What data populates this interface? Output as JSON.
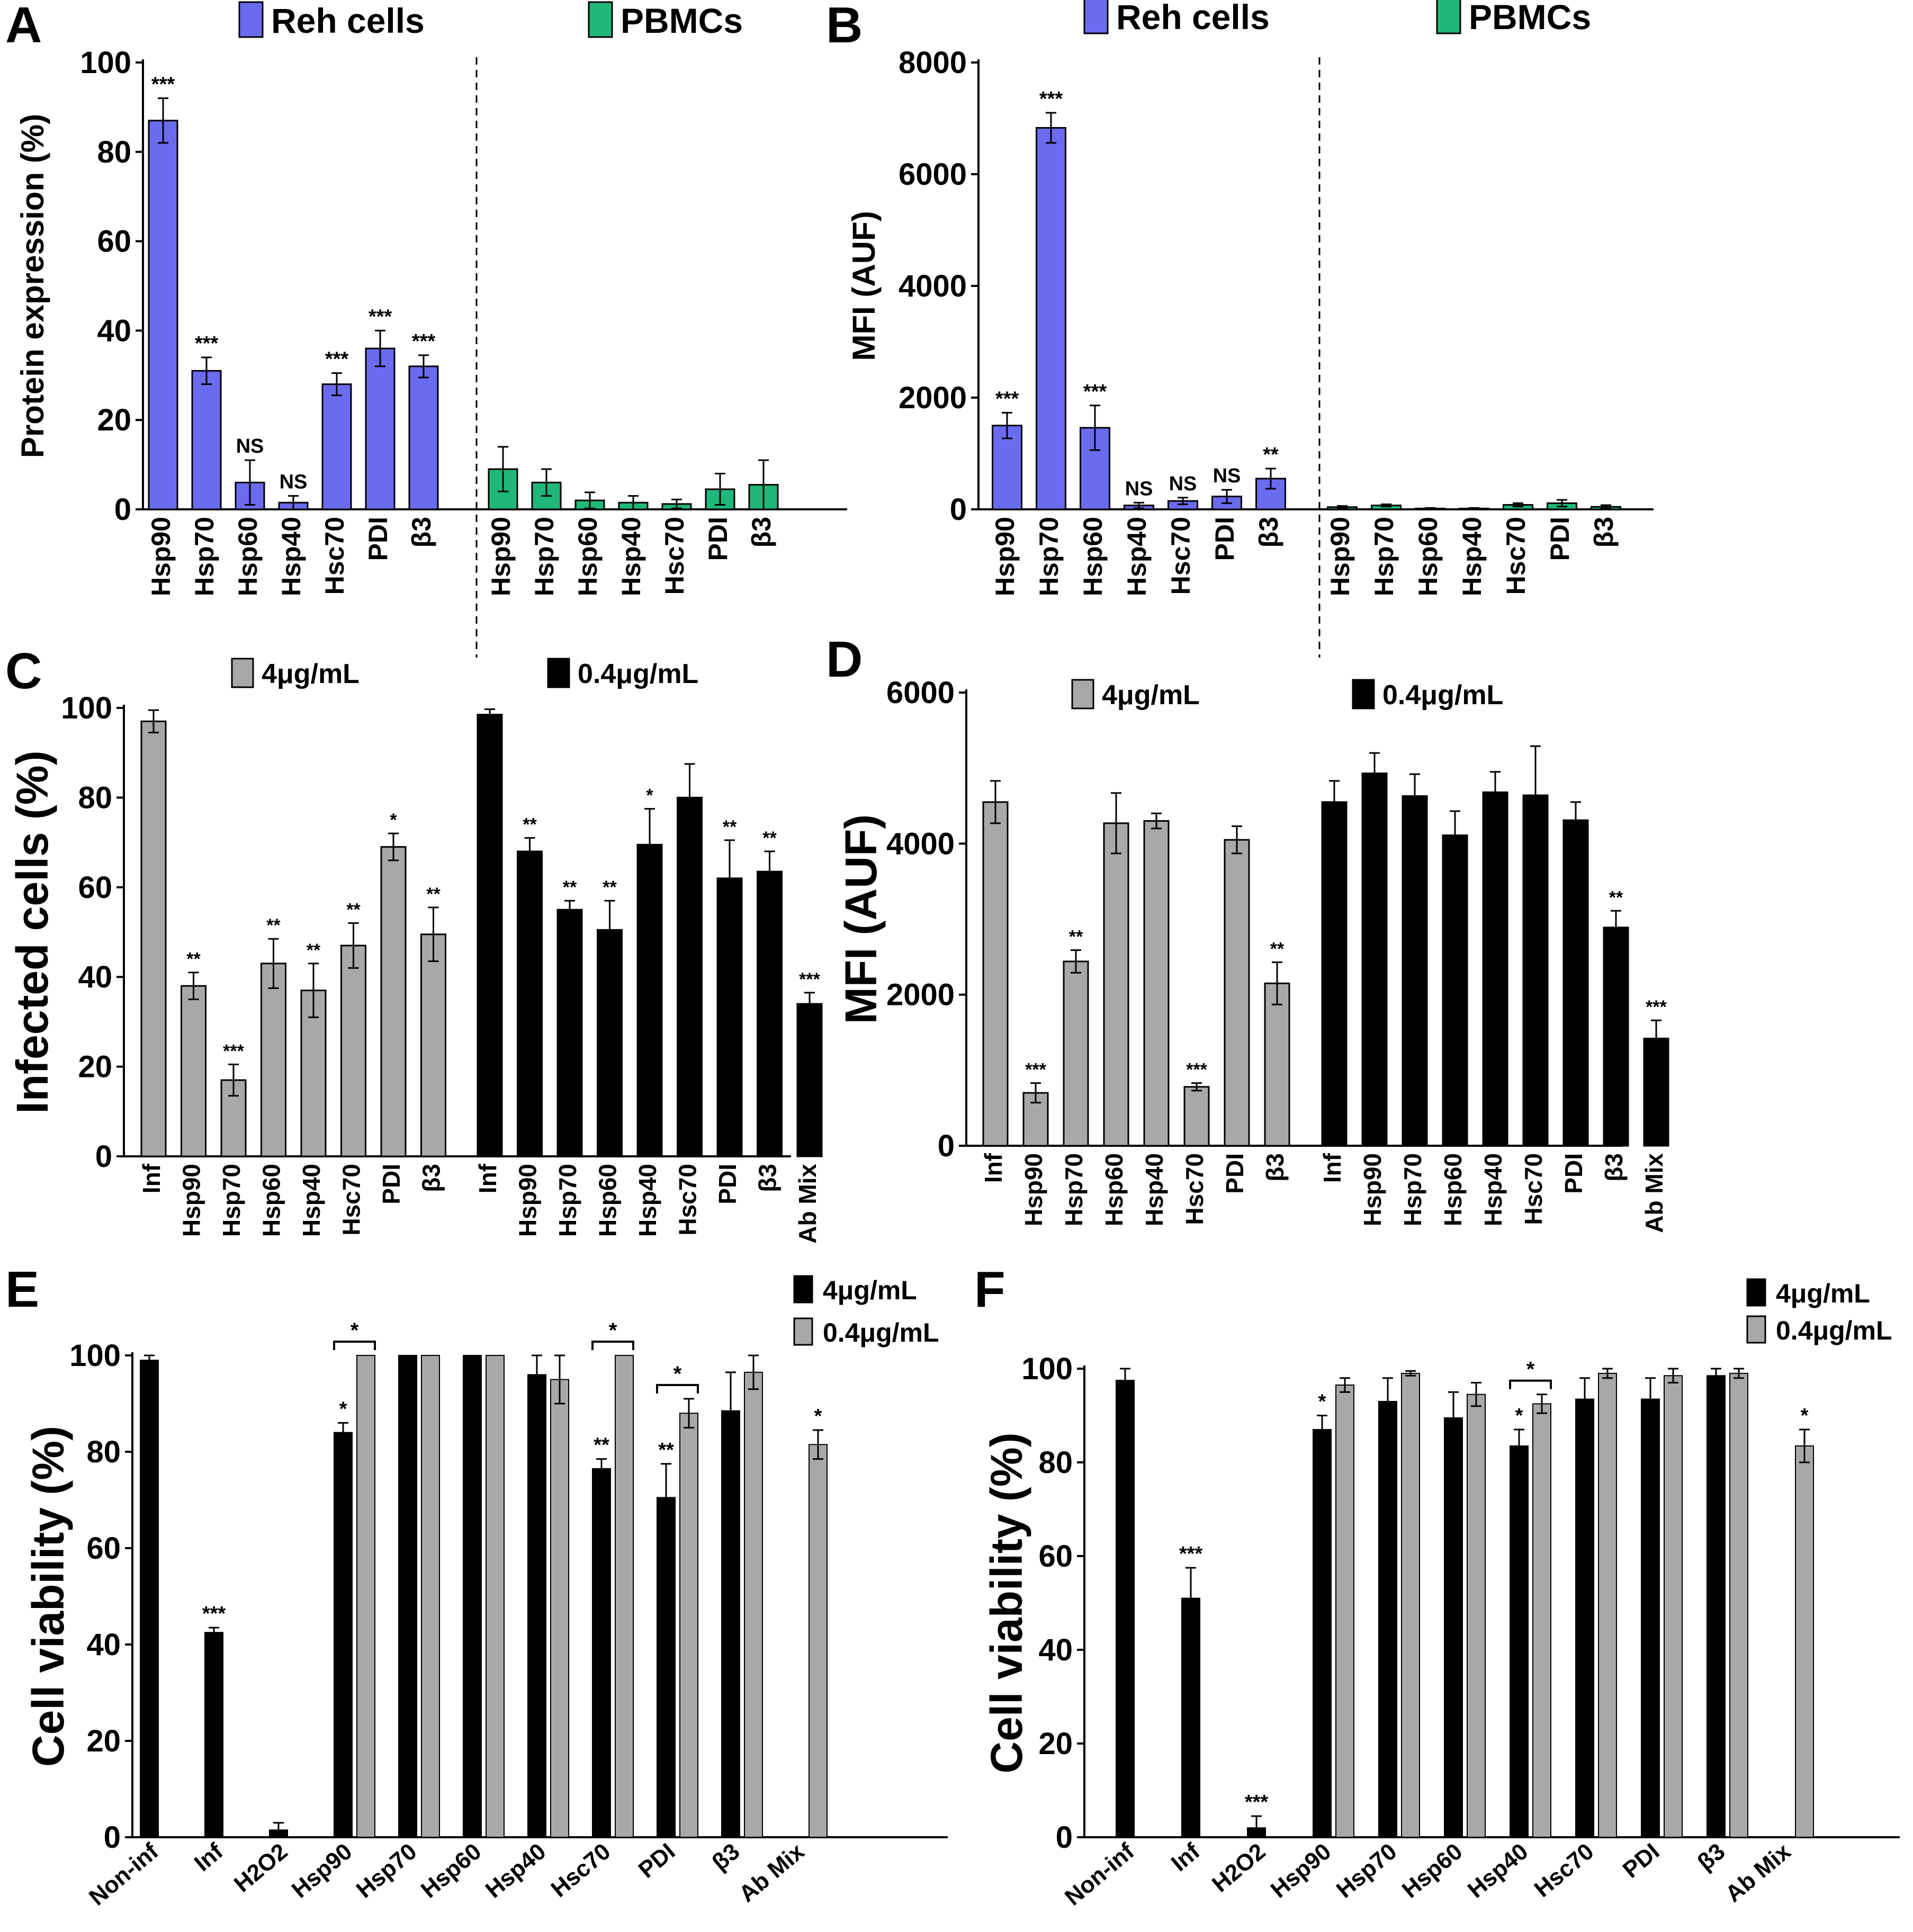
{
  "colors": {
    "reh": "#6b6bf0",
    "pbmc": "#1fb87a",
    "gray": "#a8a8a8",
    "black": "#000000"
  },
  "chart_data": [
    {
      "id": "A",
      "panel_label": "A",
      "type": "bar",
      "ylabel": "Protein expression (%)",
      "ylim": [
        0,
        100
      ],
      "yticks": [
        0,
        20,
        40,
        60,
        80,
        100
      ],
      "groups": [
        {
          "legend": "Reh cells",
          "color_key": "reh",
          "categories": [
            "Hsp90",
            "Hsp70",
            "Hsp60",
            "Hsp40",
            "Hsc70",
            "PDI",
            "β3"
          ],
          "values": [
            87,
            31,
            6,
            1.5,
            28,
            36,
            32
          ],
          "errors": [
            5,
            3,
            5,
            1.5,
            2.5,
            4,
            2.5
          ],
          "sig": [
            "***",
            "***",
            "NS",
            "NS",
            "***",
            "***",
            "***"
          ]
        },
        {
          "legend": "PBMCs",
          "color_key": "pbmc",
          "categories": [
            "Hsp90",
            "Hsp70",
            "Hsp60",
            "Hsp40",
            "Hsc70",
            "PDI",
            "β3"
          ],
          "values": [
            9,
            6,
            2,
            1.5,
            1.2,
            4.5,
            5.5
          ],
          "errors": [
            5,
            3,
            1.8,
            1.5,
            1,
            3.5,
            5.5
          ],
          "sig": [
            "",
            "",
            "",
            "",
            "",
            "",
            ""
          ]
        }
      ],
      "divider": "dashed"
    },
    {
      "id": "B",
      "panel_label": "B",
      "type": "bar",
      "ylabel": "MFI (AUF)",
      "ylim": [
        0,
        8000
      ],
      "yticks": [
        0,
        2000,
        4000,
        6000,
        8000
      ],
      "groups": [
        {
          "legend": "Reh cells",
          "color_key": "reh",
          "categories": [
            "Hsp90",
            "Hsp70",
            "Hsp60",
            "Hsp40",
            "Hsc70",
            "PDI",
            "β3"
          ],
          "values": [
            1500,
            6830,
            1460,
            70,
            150,
            230,
            550
          ],
          "errors": [
            230,
            270,
            400,
            50,
            60,
            120,
            180
          ],
          "sig": [
            "***",
            "***",
            "***",
            "NS",
            "NS",
            "NS",
            "**"
          ]
        },
        {
          "legend": "PBMCs",
          "color_key": "pbmc",
          "categories": [
            "Hsp90",
            "Hsp70",
            "Hsp60",
            "Hsp40",
            "Hsc70",
            "PDI",
            "β3"
          ],
          "values": [
            40,
            70,
            15,
            15,
            80,
            110,
            45
          ],
          "errors": [
            20,
            20,
            10,
            10,
            30,
            60,
            30
          ],
          "sig": [
            "",
            "",
            "",
            "",
            "",
            "",
            ""
          ]
        }
      ],
      "divider": "dashed"
    },
    {
      "id": "C",
      "panel_label": "C",
      "type": "bar",
      "ylabel": "Infected cells (%)",
      "ylim": [
        0,
        100
      ],
      "yticks": [
        0,
        20,
        40,
        60,
        80,
        100
      ],
      "groups": [
        {
          "legend": "4μg/mL",
          "color_key": "gray",
          "categories": [
            "Inf",
            "Hsp90",
            "Hsp70",
            "Hsp60",
            "Hsp40",
            "Hsc70",
            "PDI",
            "β3"
          ],
          "values": [
            97,
            38,
            17,
            43,
            37,
            47,
            69,
            49.5
          ],
          "errors": [
            2.5,
            3,
            3.5,
            5.5,
            6,
            5,
            3,
            6
          ],
          "sig": [
            "",
            "**",
            "***",
            "**",
            "**",
            "**",
            "*",
            "**"
          ]
        },
        {
          "legend": "0.4μg/mL",
          "color_key": "black",
          "categories": [
            "Inf",
            "Hsp90",
            "Hsp70",
            "Hsp60",
            "Hsp40",
            "Hsc70",
            "PDI",
            "β3",
            "Ab Mix"
          ],
          "values": [
            98.5,
            68,
            55,
            50.5,
            69.5,
            80,
            62,
            63.5,
            34
          ],
          "errors": [
            1.2,
            3,
            2,
            6.5,
            8,
            7.5,
            8.5,
            4.5,
            2.5
          ],
          "sig": [
            "",
            "**",
            "**",
            "**",
            "*",
            "",
            "**",
            "**",
            "***"
          ]
        }
      ]
    },
    {
      "id": "D",
      "panel_label": "D",
      "type": "bar",
      "ylabel": "MFI (AUF)",
      "ylim": [
        0,
        6000
      ],
      "yticks": [
        0,
        2000,
        4000,
        6000
      ],
      "groups": [
        {
          "legend": "4μg/mL",
          "color_key": "gray",
          "categories": [
            "Inf",
            "Hsp90",
            "Hsp70",
            "Hsp60",
            "Hsp40",
            "Hsc70",
            "PDI",
            "β3"
          ],
          "values": [
            4550,
            700,
            2440,
            4270,
            4300,
            780,
            4050,
            2150
          ],
          "errors": [
            280,
            130,
            150,
            400,
            100,
            50,
            180,
            280
          ],
          "sig": [
            "",
            "***",
            "**",
            "",
            "",
            "***",
            "",
            "**"
          ]
        },
        {
          "legend": "0.4μg/mL",
          "color_key": "black",
          "categories": [
            "Inf",
            "Hsp90",
            "Hsp70",
            "Hsp60",
            "Hsp40",
            "Hsc70",
            "PDI",
            "β3",
            "Ab Mix"
          ],
          "values": [
            4550,
            4930,
            4630,
            4110,
            4680,
            4640,
            4310,
            2890,
            1420
          ],
          "errors": [
            280,
            270,
            290,
            320,
            270,
            650,
            240,
            220,
            240
          ],
          "sig": [
            "",
            "",
            "",
            "",
            "",
            "",
            "",
            "**",
            "***"
          ]
        }
      ]
    },
    {
      "id": "E",
      "panel_label": "E",
      "type": "bar",
      "ylabel": "Cell viability (%)",
      "ylim": [
        0,
        100
      ],
      "yticks": [
        0,
        20,
        40,
        60,
        80,
        100
      ],
      "categories": [
        "Non-inf",
        "Inf",
        "H2O2",
        "Hsp90",
        "Hsp70",
        "Hsp60",
        "Hsp40",
        "Hsc70",
        "PDI",
        "β3",
        "Ab Mix"
      ],
      "series": [
        {
          "name": "4μg/mL",
          "color_key": "black",
          "values": [
            99,
            42.5,
            1.5,
            84,
            100,
            100,
            96,
            76.5,
            70.5,
            88.5,
            null
          ],
          "errors": [
            1,
            1,
            1.5,
            2,
            0,
            0,
            4,
            2,
            7,
            8,
            null
          ],
          "sig": [
            "",
            "***",
            "",
            "*",
            "",
            "",
            "",
            "**",
            "**",
            "",
            ""
          ]
        },
        {
          "name": "0.4μg/mL",
          "color_key": "gray",
          "values": [
            null,
            null,
            null,
            100,
            100,
            100,
            95,
            100,
            88,
            96.5,
            81.5
          ],
          "errors": [
            null,
            null,
            null,
            0,
            0,
            0,
            5,
            0,
            3,
            3.5,
            3
          ],
          "sig": [
            "",
            "",
            "",
            "",
            "",
            "",
            "",
            "",
            "",
            "",
            "*"
          ]
        }
      ],
      "brackets": [
        {
          "category": "Hsp90",
          "label": "*"
        },
        {
          "category": "Hsc70",
          "label": "*"
        },
        {
          "category": "PDI",
          "label": "*"
        }
      ]
    },
    {
      "id": "F",
      "panel_label": "F",
      "type": "bar",
      "ylabel": "Cell viability (%)",
      "ylim": [
        0,
        100
      ],
      "yticks": [
        0,
        20,
        40,
        60,
        80,
        100
      ],
      "categories": [
        "Non-inf",
        "Inf",
        "H2O2",
        "Hsp90",
        "Hsp70",
        "Hsp60",
        "Hsp40",
        "Hsc70",
        "PDI",
        "β3",
        "Ab Mix"
      ],
      "series": [
        {
          "name": "4μg/mL",
          "color_key": "black",
          "values": [
            97.5,
            51,
            2,
            87,
            93,
            89.5,
            83.5,
            93.5,
            93.5,
            98.5,
            null
          ],
          "errors": [
            2.5,
            6.5,
            2.5,
            3,
            5,
            5.5,
            3.5,
            4.5,
            4.5,
            1.5,
            null
          ],
          "sig": [
            "",
            "***",
            "***",
            "*",
            "",
            "",
            "*",
            "",
            "",
            "",
            ""
          ]
        },
        {
          "name": "0.4μg/mL",
          "color_key": "gray",
          "values": [
            null,
            null,
            null,
            96.5,
            99,
            94.5,
            92.5,
            99,
            98.5,
            99,
            83.5
          ],
          "errors": [
            null,
            null,
            null,
            1.5,
            0.5,
            2.5,
            2,
            1,
            1.5,
            1,
            3.5
          ],
          "sig": [
            "",
            "",
            "",
            "",
            "",
            "",
            "",
            "",
            "",
            "",
            "*"
          ]
        }
      ],
      "brackets": [
        {
          "category": "Hsp40",
          "label": "*"
        }
      ]
    }
  ]
}
